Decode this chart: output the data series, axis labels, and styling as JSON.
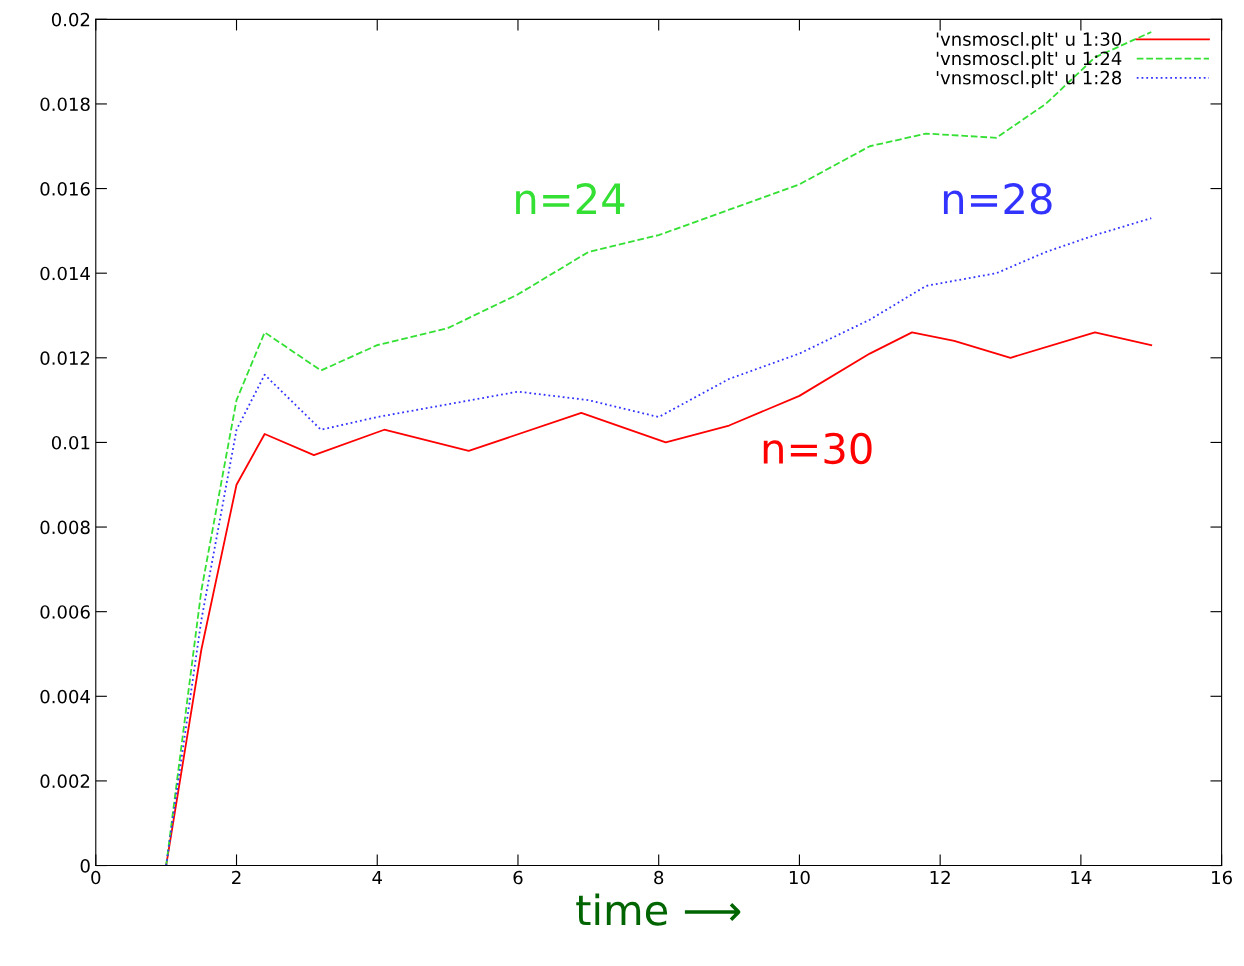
{
  "chart_data": {
    "type": "line",
    "xlabel": "time ⟶",
    "x": [
      1,
      1.5,
      2,
      2.4,
      3.2,
      4,
      5,
      6,
      7,
      8,
      9,
      10,
      11,
      11.8,
      12.8,
      13.5,
      14.2,
      15
    ],
    "series": [
      {
        "name": "'vnsmoscl.plt' u 1:30",
        "color": "#ff0000",
        "line_style": "solid",
        "x": [
          1,
          1.5,
          2,
          2.4,
          3.1,
          4.1,
          5.3,
          6.9,
          8.1,
          9,
          10,
          11,
          11.6,
          12.2,
          13,
          14.2,
          15
        ],
        "values": [
          0,
          0.0051,
          0.009,
          0.0102,
          0.0097,
          0.0103,
          0.0098,
          0.0107,
          0.01,
          0.0104,
          0.0111,
          0.0121,
          0.0126,
          0.0124,
          0.012,
          0.0126,
          0.0123
        ]
      },
      {
        "name": "'vnsmoscl.plt' u 1:24",
        "color": "#33e033",
        "line_style": "dashed",
        "values": [
          0,
          0.0065,
          0.011,
          0.0126,
          0.0117,
          0.0123,
          0.0127,
          0.0135,
          0.0145,
          0.0149,
          0.0155,
          0.0161,
          0.017,
          0.0173,
          0.0172,
          0.018,
          0.0191,
          0.0197
        ]
      },
      {
        "name": "'vnsmoscl.plt' u 1:28",
        "color": "#3333ff",
        "line_style": "dotted",
        "values": [
          0,
          0.0058,
          0.0103,
          0.0116,
          0.0103,
          0.0106,
          0.0109,
          0.0112,
          0.011,
          0.0106,
          0.0115,
          0.0121,
          0.0129,
          0.0137,
          0.014,
          0.0145,
          0.0149,
          0.0153
        ]
      }
    ],
    "annotations": [
      "n=30",
      "n=24",
      "n=28"
    ],
    "xlim": [
      0,
      16
    ],
    "xticks": [
      0,
      2,
      4,
      6,
      8,
      10,
      12,
      14,
      16
    ],
    "ylim": [
      0,
      0.02
    ],
    "yticks": [
      0,
      0.002,
      0.004,
      0.006,
      0.008,
      0.01,
      0.012,
      0.014,
      0.016,
      0.018,
      0.02
    ],
    "legend": "top right",
    "grid": false,
    "marker": "none"
  }
}
